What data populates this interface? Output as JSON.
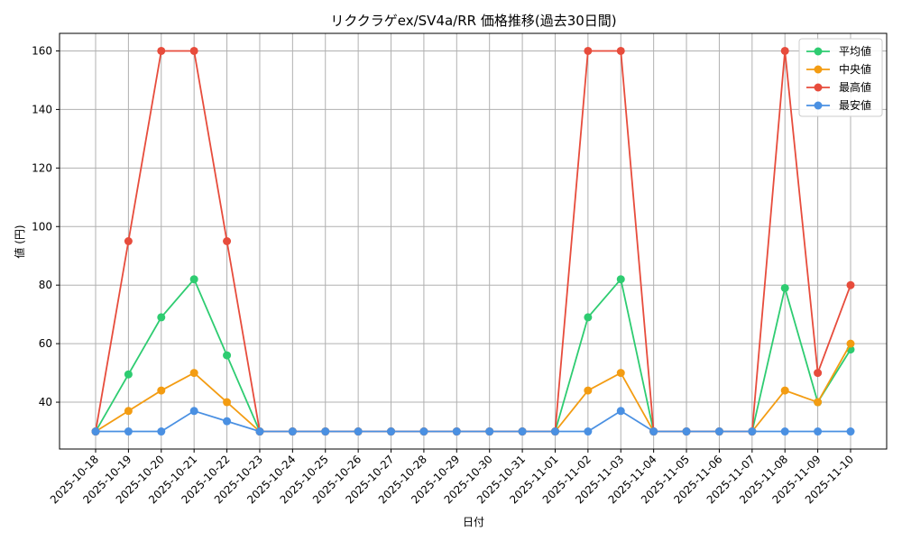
{
  "chart_data": {
    "type": "line",
    "title": "リククラゲex/SV4a/RR 価格推移(過去30日間)",
    "xlabel": "日付",
    "ylabel": "値 (円)",
    "ylim": [
      24,
      166
    ],
    "yticks": [
      40,
      60,
      80,
      100,
      120,
      140,
      160
    ],
    "grid": true,
    "legend_position": "top-right",
    "categories": [
      "2025-10-18",
      "2025-10-19",
      "2025-10-20",
      "2025-10-21",
      "2025-10-22",
      "2025-10-23",
      "2025-10-24",
      "2025-10-25",
      "2025-10-26",
      "2025-10-27",
      "2025-10-28",
      "2025-10-29",
      "2025-10-30",
      "2025-10-31",
      "2025-11-01",
      "2025-11-02",
      "2025-11-03",
      "2025-11-04",
      "2025-11-05",
      "2025-11-06",
      "2025-11-07",
      "2025-11-08",
      "2025-11-09",
      "2025-11-10"
    ],
    "series": [
      {
        "name": "平均値",
        "color": "#2ecc71",
        "values": [
          30,
          49.5,
          69,
          82,
          56,
          30,
          30,
          30,
          30,
          30,
          30,
          30,
          30,
          30,
          30,
          69,
          82,
          30,
          30,
          30,
          30,
          79,
          40,
          58
        ]
      },
      {
        "name": "中央値",
        "color": "#f39c12",
        "values": [
          30,
          37,
          44,
          50,
          40,
          30,
          30,
          30,
          30,
          30,
          30,
          30,
          30,
          30,
          30,
          44,
          50,
          30,
          30,
          30,
          30,
          44,
          40,
          60
        ]
      },
      {
        "name": "最高値",
        "color": "#e74c3c",
        "values": [
          30,
          95,
          160,
          160,
          95,
          30,
          30,
          30,
          30,
          30,
          30,
          30,
          30,
          30,
          30,
          160,
          160,
          30,
          30,
          30,
          30,
          160,
          50,
          80
        ]
      },
      {
        "name": "最安値",
        "color": "#4a90e2",
        "values": [
          30,
          30,
          30,
          37,
          33.5,
          30,
          30,
          30,
          30,
          30,
          30,
          30,
          30,
          30,
          30,
          30,
          37,
          30,
          30,
          30,
          30,
          30,
          30,
          30
        ]
      }
    ]
  }
}
